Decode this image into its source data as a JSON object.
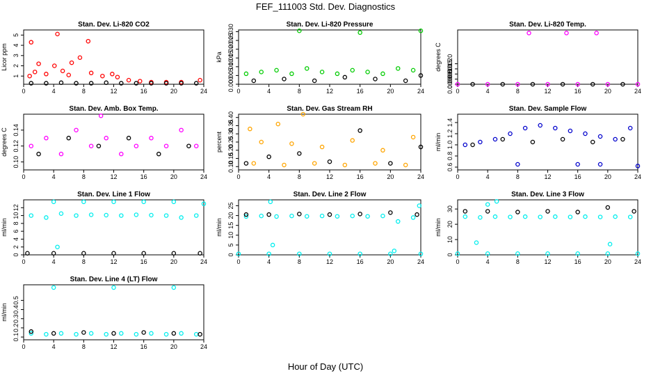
{
  "figure": {
    "title": "FEF_111003  Std. Dev. Diagnostics",
    "xlabel": "Hour of Day (UTC)"
  },
  "chart_data": [
    {
      "type": "scatter",
      "title": "Stan. Dev. Li-820 CO2",
      "ylabel": "Licor ppm",
      "xlim": [
        0,
        24
      ],
      "xticks": [
        0,
        4,
        8,
        12,
        16,
        20,
        24
      ],
      "ylim": [
        0.2,
        5.5
      ],
      "yticks": [
        1,
        2,
        3,
        4,
        5
      ],
      "series": [
        {
          "color": "#ff0000",
          "x": [
            1.0,
            2.0,
            4.5,
            7.5,
            8.6,
            4.1,
            6.4,
            0.8,
            1.5,
            3.0,
            5.2,
            6.0,
            9.0,
            10.5,
            11.8,
            12.5,
            14.0,
            15.5,
            17.0,
            19.0,
            21.0,
            23.5
          ],
          "y": [
            4.3,
            2.2,
            5.1,
            2.8,
            4.4,
            2.0,
            2.3,
            1.0,
            1.4,
            1.2,
            1.5,
            1.1,
            1.3,
            1.0,
            1.2,
            0.9,
            0.6,
            0.5,
            0.4,
            0.4,
            0.4,
            0.6
          ]
        },
        {
          "color": "#000000",
          "x": [
            1,
            3,
            5,
            7,
            9,
            11,
            13,
            15,
            17,
            19,
            21,
            23
          ],
          "y": [
            0.3,
            0.3,
            0.35,
            0.3,
            0.3,
            0.35,
            0.3,
            0.3,
            0.3,
            0.3,
            0.3,
            0.3
          ]
        }
      ]
    },
    {
      "type": "scatter",
      "title": "Stan. Dev. Li-820 Pressure",
      "ylabel": "kPa",
      "xlim": [
        0,
        24
      ],
      "xticks": [
        0,
        4,
        8,
        12,
        16,
        20,
        24
      ],
      "ylim": [
        0,
        0.031
      ],
      "yticks": [
        0.0,
        0.005,
        0.01,
        0.015,
        0.02,
        0.025,
        0.03
      ],
      "ytick_labels": [
        "0.000",
        "0.005",
        "0.010",
        "0.015",
        "0.020",
        "0.025",
        "0.030"
      ],
      "series": [
        {
          "color": "#00cc00",
          "x": [
            8.0,
            16.0,
            24.0,
            1,
            3,
            5,
            7,
            9,
            11,
            13,
            15,
            17,
            19,
            21,
            23
          ],
          "y": [
            0.0305,
            0.0295,
            0.0305,
            0.006,
            0.007,
            0.008,
            0.006,
            0.009,
            0.007,
            0.006,
            0.008,
            0.007,
            0.006,
            0.009,
            0.008
          ]
        },
        {
          "color": "#000000",
          "x": [
            2,
            6,
            10,
            14,
            18,
            22,
            24
          ],
          "y": [
            0.002,
            0.003,
            0.002,
            0.004,
            0.003,
            0.002,
            0.005
          ]
        }
      ]
    },
    {
      "type": "scatter",
      "title": "Stan. Dev. Li-820 Temp.",
      "ylabel": "degrees C",
      "xlim": [
        0,
        24
      ],
      "xticks": [
        0,
        4,
        8,
        12,
        16,
        20,
        24
      ],
      "ylim": [
        0,
        0.0053
      ],
      "yticks": [
        0.0,
        0.0005,
        0.001,
        0.0015,
        0.002
      ],
      "ytick_labels": [
        "0.0000",
        "0.0005",
        "0.0010",
        "0.0015",
        "0.0020"
      ],
      "series": [
        {
          "color": "#ff00ff",
          "x": [
            9.5,
            14.5,
            18.5,
            0,
            4,
            8,
            12,
            16,
            20,
            24
          ],
          "y": [
            0.005,
            0.005,
            0.005,
            0,
            0,
            0,
            0,
            0,
            0,
            0
          ]
        },
        {
          "color": "#000000",
          "x": [
            2,
            6,
            10,
            14,
            18,
            22
          ],
          "y": [
            0,
            0,
            0,
            0,
            0,
            0
          ]
        }
      ]
    },
    {
      "type": "scatter",
      "title": "Stan. Dev. Amb. Box Temp.",
      "ylabel": "degrees C",
      "xlim": [
        0,
        24
      ],
      "xticks": [
        0,
        4,
        8,
        12,
        16,
        20,
        24
      ],
      "ylim": [
        0.09,
        0.16
      ],
      "yticks": [
        0.1,
        0.12,
        0.14
      ],
      "ytick_labels": [
        "0.10",
        "0.12",
        "0.14"
      ],
      "series": [
        {
          "color": "#ff00ff",
          "x": [
            1,
            3,
            5,
            7,
            9,
            11,
            13,
            15,
            17,
            19,
            21,
            23,
            10.3
          ],
          "y": [
            0.12,
            0.13,
            0.11,
            0.14,
            0.12,
            0.13,
            0.11,
            0.12,
            0.13,
            0.12,
            0.14,
            0.12,
            0.158
          ]
        },
        {
          "color": "#000000",
          "x": [
            2,
            6,
            10,
            14,
            18,
            22
          ],
          "y": [
            0.11,
            0.13,
            0.12,
            0.13,
            0.11,
            0.12
          ]
        }
      ]
    },
    {
      "type": "scatter",
      "title": "Stan. Dev. Gas Stream RH",
      "ylabel": "percent",
      "xlim": [
        0,
        24
      ],
      "xticks": [
        0,
        4,
        8,
        12,
        16,
        20,
        24
      ],
      "ylim": [
        0.08,
        0.42
      ],
      "yticks": [
        0.1,
        0.15,
        0.2,
        0.25,
        0.3,
        0.35,
        0.4
      ],
      "ytick_labels": [
        "0.10",
        "0.15",
        "0.20",
        "0.25",
        "0.30",
        "0.35",
        "0.40"
      ],
      "series": [
        {
          "color": "#ffa500",
          "x": [
            8.5,
            5.2,
            1.5,
            3,
            7,
            11,
            15,
            19,
            23,
            2,
            6,
            10,
            14,
            18,
            22
          ],
          "y": [
            0.42,
            0.36,
            0.33,
            0.25,
            0.24,
            0.22,
            0.26,
            0.2,
            0.28,
            0.12,
            0.11,
            0.12,
            0.11,
            0.12,
            0.11
          ]
        },
        {
          "color": "#000000",
          "x": [
            1,
            4,
            8,
            12,
            16,
            20,
            24
          ],
          "y": [
            0.12,
            0.16,
            0.18,
            0.13,
            0.32,
            0.12,
            0.22
          ]
        }
      ]
    },
    {
      "type": "scatter",
      "title": "Stan. Dev. Sample Flow",
      "ylabel": "ml/min",
      "xlim": [
        0,
        24
      ],
      "xticks": [
        0,
        4,
        8,
        12,
        16,
        20,
        24
      ],
      "ylim": [
        0.55,
        1.55
      ],
      "yticks": [
        0.6,
        0.8,
        1.0,
        1.2,
        1.4
      ],
      "ytick_labels": [
        "0.6",
        "0.8",
        "1.0",
        "1.2",
        "1.4"
      ],
      "series": [
        {
          "color": "#0000cc",
          "x": [
            8,
            16,
            24,
            19,
            1,
            3,
            5,
            7,
            9,
            11,
            13,
            15,
            17,
            19,
            21,
            23
          ],
          "y": [
            0.65,
            0.65,
            0.62,
            0.65,
            1.0,
            1.05,
            1.1,
            1.2,
            1.3,
            1.35,
            1.3,
            1.25,
            1.2,
            1.15,
            1.1,
            1.3
          ]
        },
        {
          "color": "#000000",
          "x": [
            2,
            6,
            10,
            14,
            18,
            22
          ],
          "y": [
            1.0,
            1.1,
            1.05,
            1.1,
            1.05,
            1.1
          ]
        }
      ]
    },
    {
      "type": "scatter",
      "title": "Stan. Dev. Line 1 Flow",
      "ylabel": "ml/min",
      "xlim": [
        0,
        24
      ],
      "xticks": [
        0,
        4,
        8,
        12,
        16,
        20,
        24
      ],
      "ylim": [
        0,
        14
      ],
      "yticks": [
        0,
        2,
        4,
        6,
        8,
        10,
        12
      ],
      "series": [
        {
          "color": "#00eeee",
          "x": [
            4,
            8,
            12,
            16,
            20,
            24,
            1,
            3,
            5,
            7,
            9,
            11,
            13,
            15,
            17,
            19,
            21,
            23,
            4.5
          ],
          "y": [
            13.5,
            13.5,
            13.5,
            13.5,
            13.5,
            13.0,
            10,
            9.5,
            10.5,
            10,
            10.2,
            10.1,
            10,
            10.2,
            10.1,
            10,
            9.5,
            10.0,
            2.0
          ]
        },
        {
          "color": "#000000",
          "x": [
            0.5,
            4,
            8,
            12,
            16,
            20,
            23.5
          ],
          "y": [
            0.4,
            0.4,
            0.4,
            0.4,
            0.4,
            0.4,
            0.4
          ]
        }
      ]
    },
    {
      "type": "scatter",
      "title": "Stan. Dev. Line 2 Flow",
      "ylabel": "ml/min",
      "xlim": [
        0,
        24
      ],
      "xticks": [
        0,
        4,
        8,
        12,
        16,
        20,
        24
      ],
      "ylim": [
        0,
        28
      ],
      "yticks": [
        0,
        5,
        10,
        15,
        20,
        25
      ],
      "series": [
        {
          "color": "#00eeee",
          "x": [
            4.2,
            23.8,
            1,
            3,
            5,
            7,
            9,
            11,
            13,
            15,
            17,
            19,
            21,
            23,
            4.5,
            20.5,
            0,
            4,
            8,
            12,
            16,
            20,
            24
          ],
          "y": [
            27,
            25,
            19.5,
            19.8,
            19.5,
            19.8,
            19.6,
            19.8,
            19.6,
            19.8,
            19.6,
            19.8,
            17,
            19,
            5,
            2,
            0.5,
            0.5,
            0.5,
            0.5,
            0.5,
            0.5,
            0.5
          ]
        },
        {
          "color": "#000000",
          "x": [
            1,
            4,
            8,
            12,
            16,
            20,
            23.5
          ],
          "y": [
            20.5,
            20.5,
            20.8,
            20.5,
            20.8,
            21.5,
            20.5
          ]
        }
      ]
    },
    {
      "type": "scatter",
      "title": "Stan. Dev. Line 3 Flow",
      "ylabel": "ml/min",
      "xlim": [
        0,
        24
      ],
      "xticks": [
        0,
        4,
        8,
        12,
        16,
        20,
        24
      ],
      "ylim": [
        0,
        36
      ],
      "yticks": [
        0,
        10,
        20,
        30
      ],
      "series": [
        {
          "color": "#00eeee",
          "x": [
            5.2,
            4,
            1,
            3,
            5,
            7,
            9,
            11,
            13,
            15,
            17,
            19,
            21,
            23,
            2.5,
            20.3,
            0,
            4,
            8,
            12,
            16,
            20,
            24
          ],
          "y": [
            35,
            33,
            25,
            24.5,
            25,
            24.8,
            25,
            24.8,
            25,
            24.8,
            25,
            24.8,
            25,
            24.8,
            8,
            7,
            0.8,
            0.8,
            0.8,
            0.8,
            0.8,
            0.8,
            0.8
          ]
        },
        {
          "color": "#000000",
          "x": [
            1,
            4,
            8,
            12,
            16,
            20,
            23.5
          ],
          "y": [
            28.5,
            28.5,
            28,
            28.5,
            28,
            31,
            28.5
          ]
        }
      ]
    },
    {
      "type": "scatter",
      "title": "Stan. Dev. Line 4 (LT) Flow",
      "ylabel": "ml/min",
      "xlim": [
        0,
        24
      ],
      "xticks": [
        0,
        4,
        8,
        12,
        16,
        20,
        24
      ],
      "ylim": [
        0.07,
        0.67
      ],
      "yticks": [
        0.1,
        0.2,
        0.3,
        0.4,
        0.5
      ],
      "ytick_labels": [
        "0.1",
        "0.2",
        "0.3",
        "0.4",
        "0.5"
      ],
      "series": [
        {
          "color": "#00eeee",
          "x": [
            4,
            12,
            20,
            1,
            3,
            5,
            7,
            9,
            11,
            13,
            15,
            17,
            19,
            21,
            23
          ],
          "y": [
            0.64,
            0.64,
            0.64,
            0.14,
            0.13,
            0.14,
            0.13,
            0.14,
            0.13,
            0.14,
            0.13,
            0.14,
            0.13,
            0.14,
            0.13
          ]
        },
        {
          "color": "#000000",
          "x": [
            1,
            4,
            8,
            12,
            16,
            20,
            23.5
          ],
          "y": [
            0.16,
            0.14,
            0.15,
            0.14,
            0.15,
            0.14,
            0.13
          ]
        }
      ]
    }
  ]
}
